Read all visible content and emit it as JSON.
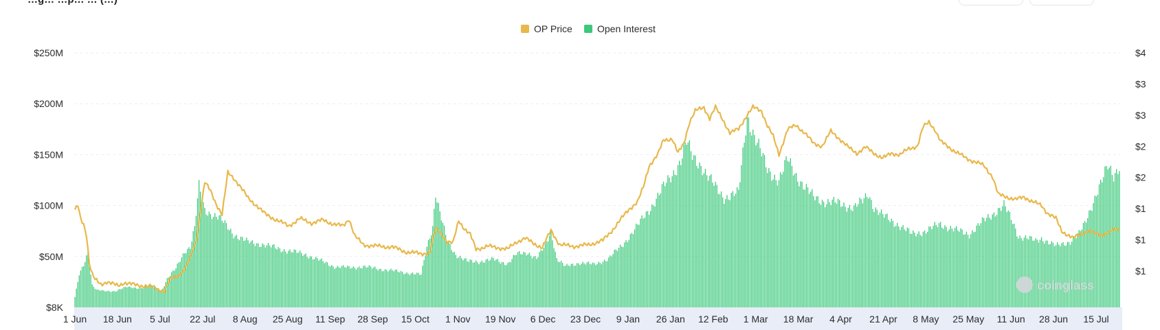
{
  "header": {
    "title_fragment": "…g… …p… … (…)"
  },
  "watermark": {
    "text": "coinglass"
  },
  "colors": {
    "price": "#e8b84a",
    "open_interest": "#3cc97b",
    "grid": "#ebeef2",
    "axis_band": "#e8edf7"
  },
  "chart_data": {
    "type": "bar",
    "legend_position": "top-center",
    "grid": true,
    "series": [
      {
        "name": "OP Price",
        "type": "line",
        "axis": "right"
      },
      {
        "name": "Open Interest",
        "type": "bar",
        "axis": "left"
      }
    ],
    "x_tick_labels": [
      "1 Jun",
      "18 Jun",
      "5 Jul",
      "22 Jul",
      "8 Aug",
      "25 Aug",
      "11 Sep",
      "28 Sep",
      "15 Oct",
      "1 Nov",
      "19 Nov",
      "6 Dec",
      "23 Dec",
      "9 Jan",
      "26 Jan",
      "12 Feb",
      "1 Mar",
      "18 Mar",
      "4 Apr",
      "21 Apr",
      "8 May",
      "25 May",
      "11 Jun",
      "28 Jun",
      "15 Jul"
    ],
    "y_left_tick_labels": [
      "$8K",
      "$50M",
      "$100M",
      "$150M",
      "$200M",
      "$250M"
    ],
    "y_left_tick_values": [
      0.008,
      50,
      100,
      150,
      200,
      250
    ],
    "y_left_range": [
      0,
      250
    ],
    "y_left_unit": "$M",
    "y_right_tick_labels": [
      "$1",
      "$1",
      "$1",
      "$2",
      "$2",
      "$3",
      "$3",
      "$4"
    ],
    "y_right_range": [
      0.5,
      4
    ],
    "open_interest_anchors": [
      [
        0,
        10
      ],
      [
        3,
        32
      ],
      [
        6,
        42
      ],
      [
        9,
        55
      ],
      [
        12,
        22
      ],
      [
        15,
        17
      ],
      [
        20,
        16
      ],
      [
        28,
        16
      ],
      [
        36,
        20
      ],
      [
        45,
        19
      ],
      [
        54,
        21
      ],
      [
        60,
        16
      ],
      [
        64,
        28
      ],
      [
        70,
        38
      ],
      [
        76,
        55
      ],
      [
        80,
        60
      ],
      [
        83,
        78
      ],
      [
        86,
        118
      ],
      [
        90,
        95
      ],
      [
        95,
        92
      ],
      [
        100,
        88
      ],
      [
        110,
        72
      ],
      [
        120,
        64
      ],
      [
        130,
        62
      ],
      [
        140,
        58
      ],
      [
        150,
        55
      ],
      [
        160,
        52
      ],
      [
        170,
        46
      ],
      [
        180,
        40
      ],
      [
        190,
        39
      ],
      [
        200,
        40
      ],
      [
        210,
        38
      ],
      [
        220,
        36
      ],
      [
        230,
        34
      ],
      [
        240,
        32
      ],
      [
        244,
        60
      ],
      [
        248,
        80
      ],
      [
        250,
        112
      ],
      [
        253,
        92
      ],
      [
        258,
        65
      ],
      [
        264,
        52
      ],
      [
        272,
        45
      ],
      [
        280,
        45
      ],
      [
        290,
        47
      ],
      [
        300,
        43
      ],
      [
        306,
        52
      ],
      [
        314,
        54
      ],
      [
        320,
        48
      ],
      [
        326,
        60
      ],
      [
        330,
        75
      ],
      [
        334,
        48
      ],
      [
        340,
        40
      ],
      [
        350,
        44
      ],
      [
        360,
        42
      ],
      [
        370,
        48
      ],
      [
        380,
        62
      ],
      [
        390,
        80
      ],
      [
        395,
        90
      ],
      [
        400,
        100
      ],
      [
        408,
        118
      ],
      [
        414,
        130
      ],
      [
        420,
        145
      ],
      [
        424,
        162
      ],
      [
        428,
        148
      ],
      [
        434,
        140
      ],
      [
        438,
        130
      ],
      [
        444,
        118
      ],
      [
        450,
        108
      ],
      [
        460,
        112
      ],
      [
        466,
        190
      ],
      [
        470,
        172
      ],
      [
        476,
        150
      ],
      [
        480,
        135
      ],
      [
        488,
        125
      ],
      [
        494,
        145
      ],
      [
        500,
        130
      ],
      [
        506,
        118
      ],
      [
        512,
        108
      ],
      [
        520,
        104
      ],
      [
        530,
        102
      ],
      [
        540,
        98
      ],
      [
        546,
        104
      ],
      [
        550,
        112
      ],
      [
        554,
        98
      ],
      [
        560,
        90
      ],
      [
        570,
        82
      ],
      [
        580,
        72
      ],
      [
        590,
        75
      ],
      [
        600,
        82
      ],
      [
        610,
        76
      ],
      [
        620,
        72
      ],
      [
        630,
        85
      ],
      [
        640,
        96
      ],
      [
        644,
        100
      ],
      [
        650,
        84
      ],
      [
        654,
        70
      ],
      [
        660,
        68
      ],
      [
        666,
        65
      ],
      [
        670,
        68
      ],
      [
        680,
        60
      ],
      [
        690,
        65
      ],
      [
        696,
        72
      ],
      [
        700,
        82
      ],
      [
        708,
        112
      ],
      [
        712,
        124
      ],
      [
        716,
        138
      ],
      [
        720,
        130
      ],
      [
        724,
        140
      ]
    ],
    "price_anchors": [
      [
        0,
        1.83
      ],
      [
        2,
        1.9
      ],
      [
        4,
        1.72
      ],
      [
        6,
        1.65
      ],
      [
        8,
        1.5
      ],
      [
        10,
        1.1
      ],
      [
        12,
        0.95
      ],
      [
        14,
        0.88
      ],
      [
        18,
        0.82
      ],
      [
        22,
        0.85
      ],
      [
        26,
        0.82
      ],
      [
        30,
        0.8
      ],
      [
        34,
        0.84
      ],
      [
        38,
        0.82
      ],
      [
        46,
        0.8
      ],
      [
        54,
        0.78
      ],
      [
        58,
        0.75
      ],
      [
        62,
        0.72
      ],
      [
        66,
        0.88
      ],
      [
        72,
        0.95
      ],
      [
        76,
        1.02
      ],
      [
        80,
        1.18
      ],
      [
        84,
        1.42
      ],
      [
        88,
        1.95
      ],
      [
        90,
        2.22
      ],
      [
        94,
        2.1
      ],
      [
        98,
        1.92
      ],
      [
        102,
        1.78
      ],
      [
        106,
        2.35
      ],
      [
        110,
        2.28
      ],
      [
        114,
        2.18
      ],
      [
        120,
        2.0
      ],
      [
        126,
        1.9
      ],
      [
        132,
        1.78
      ],
      [
        140,
        1.7
      ],
      [
        148,
        1.62
      ],
      [
        156,
        1.72
      ],
      [
        164,
        1.66
      ],
      [
        172,
        1.7
      ],
      [
        180,
        1.64
      ],
      [
        186,
        1.62
      ],
      [
        190,
        1.72
      ],
      [
        194,
        1.48
      ],
      [
        200,
        1.36
      ],
      [
        210,
        1.34
      ],
      [
        220,
        1.33
      ],
      [
        230,
        1.26
      ],
      [
        240,
        1.24
      ],
      [
        246,
        1.25
      ],
      [
        250,
        1.58
      ],
      [
        254,
        1.52
      ],
      [
        258,
        1.4
      ],
      [
        262,
        1.38
      ],
      [
        266,
        1.7
      ],
      [
        270,
        1.58
      ],
      [
        274,
        1.5
      ],
      [
        278,
        1.3
      ],
      [
        286,
        1.34
      ],
      [
        294,
        1.32
      ],
      [
        300,
        1.3
      ],
      [
        306,
        1.4
      ],
      [
        312,
        1.45
      ],
      [
        318,
        1.38
      ],
      [
        324,
        1.32
      ],
      [
        330,
        1.56
      ],
      [
        336,
        1.36
      ],
      [
        346,
        1.34
      ],
      [
        356,
        1.36
      ],
      [
        366,
        1.42
      ],
      [
        372,
        1.55
      ],
      [
        378,
        1.7
      ],
      [
        384,
        1.85
      ],
      [
        390,
        1.95
      ],
      [
        394,
        2.15
      ],
      [
        398,
        2.45
      ],
      [
        404,
        2.6
      ],
      [
        408,
        2.8
      ],
      [
        414,
        2.82
      ],
      [
        418,
        2.62
      ],
      [
        422,
        2.75
      ],
      [
        426,
        3.05
      ],
      [
        430,
        3.2
      ],
      [
        436,
        3.25
      ],
      [
        440,
        3.1
      ],
      [
        444,
        3.25
      ],
      [
        450,
        3.05
      ],
      [
        454,
        2.9
      ],
      [
        460,
        2.95
      ],
      [
        466,
        3.15
      ],
      [
        470,
        3.25
      ],
      [
        476,
        3.2
      ],
      [
        480,
        3.0
      ],
      [
        484,
        2.85
      ],
      [
        488,
        2.6
      ],
      [
        494,
        2.95
      ],
      [
        500,
        3.0
      ],
      [
        506,
        2.9
      ],
      [
        512,
        2.75
      ],
      [
        518,
        2.72
      ],
      [
        524,
        2.92
      ],
      [
        530,
        2.82
      ],
      [
        536,
        2.7
      ],
      [
        542,
        2.62
      ],
      [
        548,
        2.7
      ],
      [
        554,
        2.62
      ],
      [
        560,
        2.55
      ],
      [
        566,
        2.62
      ],
      [
        572,
        2.6
      ],
      [
        578,
        2.68
      ],
      [
        584,
        2.72
      ],
      [
        588,
        2.98
      ],
      [
        592,
        3.05
      ],
      [
        596,
        2.95
      ],
      [
        600,
        2.78
      ],
      [
        606,
        2.7
      ],
      [
        612,
        2.62
      ],
      [
        618,
        2.55
      ],
      [
        624,
        2.5
      ],
      [
        630,
        2.45
      ],
      [
        636,
        2.3
      ],
      [
        640,
        2.05
      ],
      [
        646,
        2.02
      ],
      [
        652,
        1.98
      ],
      [
        658,
        2.02
      ],
      [
        664,
        1.95
      ],
      [
        670,
        1.9
      ],
      [
        674,
        1.8
      ],
      [
        680,
        1.72
      ],
      [
        684,
        1.55
      ],
      [
        688,
        1.5
      ],
      [
        692,
        1.45
      ],
      [
        698,
        1.52
      ],
      [
        702,
        1.55
      ],
      [
        706,
        1.52
      ],
      [
        710,
        1.5
      ],
      [
        716,
        1.52
      ],
      [
        720,
        1.56
      ],
      [
        724,
        1.58
      ]
    ],
    "bar_count": 725
  }
}
